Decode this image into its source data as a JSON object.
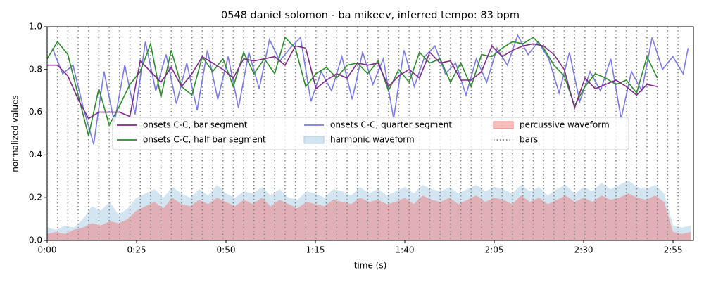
{
  "chart_data": {
    "type": "line",
    "title": "0548 daniel solomon - ba mikeev, inferred tempo: 83 bpm",
    "x_label": "time (s)",
    "y_label": "normalized values",
    "xlim": [
      0,
      180.7
    ],
    "ylim": [
      0,
      1
    ],
    "xticks": [
      {
        "value": 0,
        "label": "0:00"
      },
      {
        "value": 25,
        "label": "0:25"
      },
      {
        "value": 50,
        "label": "0:50"
      },
      {
        "value": 75,
        "label": "1:15"
      },
      {
        "value": 100,
        "label": "1:40"
      },
      {
        "value": 125,
        "label": "2:05"
      },
      {
        "value": 150,
        "label": "2:30"
      },
      {
        "value": 175,
        "label": "2:55"
      }
    ],
    "yticks": [
      {
        "value": 0,
        "label": "0.0"
      },
      {
        "value": 0.2,
        "label": "0.2"
      },
      {
        "value": 0.4,
        "label": "0.4"
      },
      {
        "value": 0.6,
        "label": "0.6"
      },
      {
        "value": 0.8,
        "label": "0.8"
      },
      {
        "value": 1,
        "label": "1.0"
      }
    ],
    "areas": [
      {
        "name": "harmonic waveform",
        "color": "#a6cbe3",
        "x": [
          0,
          2.5,
          5,
          7.5,
          10,
          12.5,
          15,
          17.5,
          20,
          22.5,
          25,
          27.5,
          30,
          32.5,
          35,
          37.5,
          40,
          42.5,
          45,
          47.5,
          50,
          52.5,
          55,
          57.5,
          60,
          62.5,
          65,
          67.5,
          70,
          72.5,
          75,
          77.5,
          80,
          82.5,
          85,
          87.5,
          90,
          92.5,
          95,
          97.5,
          100,
          102.5,
          105,
          107.5,
          110,
          112.5,
          115,
          117.5,
          120,
          122.5,
          125,
          127.5,
          130,
          132.5,
          135,
          137.5,
          140,
          142.5,
          145,
          147.5,
          150,
          152.5,
          155,
          157.5,
          160,
          162.5,
          165,
          167.5,
          170,
          172.5,
          175,
          177.5,
          180
        ],
        "values": [
          0.06,
          0.05,
          0.07,
          0.06,
          0.1,
          0.16,
          0.14,
          0.18,
          0.12,
          0.15,
          0.2,
          0.22,
          0.24,
          0.2,
          0.25,
          0.22,
          0.2,
          0.24,
          0.21,
          0.26,
          0.22,
          0.2,
          0.23,
          0.22,
          0.25,
          0.21,
          0.24,
          0.2,
          0.19,
          0.23,
          0.22,
          0.2,
          0.24,
          0.23,
          0.21,
          0.25,
          0.22,
          0.24,
          0.21,
          0.23,
          0.25,
          0.22,
          0.26,
          0.24,
          0.23,
          0.25,
          0.22,
          0.24,
          0.26,
          0.23,
          0.25,
          0.24,
          0.22,
          0.26,
          0.23,
          0.25,
          0.21,
          0.24,
          0.26,
          0.22,
          0.25,
          0.23,
          0.27,
          0.24,
          0.26,
          0.28,
          0.25,
          0.24,
          0.26,
          0.22,
          0.07,
          0.06,
          0.07
        ]
      },
      {
        "name": "percussive waveform",
        "color": "#ee7b7b",
        "x": [
          0,
          2.5,
          5,
          7.5,
          10,
          12.5,
          15,
          17.5,
          20,
          22.5,
          25,
          27.5,
          30,
          32.5,
          35,
          37.5,
          40,
          42.5,
          45,
          47.5,
          50,
          52.5,
          55,
          57.5,
          60,
          62.5,
          65,
          67.5,
          70,
          72.5,
          75,
          77.5,
          80,
          82.5,
          85,
          87.5,
          90,
          92.5,
          95,
          97.5,
          100,
          102.5,
          105,
          107.5,
          110,
          112.5,
          115,
          117.5,
          120,
          122.5,
          125,
          127.5,
          130,
          132.5,
          135,
          137.5,
          140,
          142.5,
          145,
          147.5,
          150,
          152.5,
          155,
          157.5,
          160,
          162.5,
          165,
          167.5,
          170,
          172.5,
          175,
          177.5,
          180
        ],
        "values": [
          0.03,
          0.04,
          0.03,
          0.05,
          0.06,
          0.08,
          0.07,
          0.09,
          0.08,
          0.1,
          0.14,
          0.16,
          0.18,
          0.15,
          0.2,
          0.17,
          0.16,
          0.19,
          0.17,
          0.2,
          0.18,
          0.16,
          0.19,
          0.17,
          0.2,
          0.16,
          0.19,
          0.17,
          0.15,
          0.18,
          0.17,
          0.16,
          0.19,
          0.18,
          0.17,
          0.2,
          0.18,
          0.19,
          0.17,
          0.18,
          0.2,
          0.17,
          0.21,
          0.19,
          0.18,
          0.2,
          0.17,
          0.19,
          0.21,
          0.18,
          0.2,
          0.19,
          0.17,
          0.21,
          0.18,
          0.2,
          0.17,
          0.19,
          0.21,
          0.18,
          0.2,
          0.18,
          0.21,
          0.19,
          0.2,
          0.22,
          0.2,
          0.19,
          0.21,
          0.18,
          0.04,
          0.03,
          0.04
        ]
      }
    ],
    "bar_lines": {
      "name": "bars",
      "color": "#808080",
      "x": [
        0,
        2.89,
        5.78,
        8.67,
        11.57,
        14.46,
        17.35,
        20.24,
        23.13,
        26.02,
        28.92,
        31.81,
        34.7,
        37.59,
        40.48,
        43.37,
        46.27,
        49.16,
        52.05,
        54.94,
        57.83,
        60.72,
        63.62,
        66.51,
        69.4,
        72.29,
        75.18,
        78.07,
        80.96,
        83.86,
        86.75,
        89.64,
        92.53,
        95.42,
        98.31,
        101.21,
        104.1,
        106.99,
        109.88,
        112.77,
        115.66,
        118.55,
        121.45,
        124.34,
        127.23,
        130.12,
        133.01,
        135.9,
        138.8,
        141.69,
        144.58,
        147.47,
        150.36,
        153.25,
        156.14,
        159.04,
        161.93,
        164.82,
        167.71,
        170.6,
        173.49,
        176.39
      ]
    },
    "series": [
      {
        "name": "onsets C-C, bar segment",
        "color": "#7f2a8a",
        "x": [
          0,
          2.89,
          5.78,
          8.67,
          11.57,
          14.46,
          17.35,
          20.24,
          23.13,
          26.02,
          28.92,
          31.81,
          34.7,
          37.59,
          40.48,
          43.37,
          46.27,
          49.16,
          52.05,
          54.94,
          57.83,
          60.72,
          63.62,
          66.51,
          69.4,
          72.29,
          75.18,
          78.07,
          80.96,
          83.86,
          86.75,
          89.64,
          92.53,
          95.42,
          98.31,
          101.21,
          104.1,
          106.99,
          109.88,
          112.77,
          115.66,
          118.55,
          121.45,
          124.34,
          127.23,
          130.12,
          133.01,
          135.9,
          138.8,
          141.69,
          144.58,
          147.47,
          150.36,
          153.25,
          156.14,
          159.04,
          161.93,
          164.82,
          167.71,
          170.6
        ],
        "values": [
          0.82,
          0.82,
          0.77,
          0.66,
          0.57,
          0.6,
          0.6,
          0.6,
          0.58,
          0.84,
          0.79,
          0.74,
          0.81,
          0.72,
          0.78,
          0.86,
          0.83,
          0.8,
          0.76,
          0.85,
          0.84,
          0.85,
          0.86,
          0.82,
          0.91,
          0.9,
          0.71,
          0.75,
          0.78,
          0.76,
          0.83,
          0.82,
          0.83,
          0.72,
          0.77,
          0.8,
          0.76,
          0.88,
          0.83,
          0.84,
          0.75,
          0.75,
          0.79,
          0.91,
          0.86,
          0.89,
          0.91,
          0.92,
          0.91,
          0.87,
          0.8,
          0.62,
          0.76,
          0.71,
          0.73,
          0.75,
          0.72,
          0.68,
          0.73,
          0.72
        ]
      },
      {
        "name": "onsets C-C, half bar segment",
        "color": "#2a8f2a",
        "x": [
          0,
          2.89,
          5.78,
          8.67,
          11.57,
          14.46,
          17.35,
          20.24,
          23.13,
          26.02,
          28.92,
          31.81,
          34.7,
          37.59,
          40.48,
          43.37,
          46.27,
          49.16,
          52.05,
          54.94,
          57.83,
          60.72,
          63.62,
          66.51,
          69.4,
          72.29,
          75.18,
          78.07,
          80.96,
          83.86,
          86.75,
          89.64,
          92.53,
          95.42,
          98.31,
          101.21,
          104.1,
          106.99,
          109.88,
          112.77,
          115.66,
          118.55,
          121.45,
          124.34,
          127.23,
          130.12,
          133.01,
          135.9,
          138.8,
          141.69,
          144.58,
          147.47,
          150.36,
          153.25,
          156.14,
          159.04,
          161.93,
          164.82,
          167.71,
          170.6
        ],
        "values": [
          0.85,
          0.93,
          0.87,
          0.68,
          0.49,
          0.71,
          0.54,
          0.63,
          0.73,
          0.79,
          0.92,
          0.67,
          0.89,
          0.72,
          0.68,
          0.86,
          0.79,
          0.85,
          0.72,
          0.88,
          0.78,
          0.85,
          0.78,
          0.95,
          0.9,
          0.72,
          0.78,
          0.81,
          0.76,
          0.82,
          0.83,
          0.78,
          0.84,
          0.7,
          0.8,
          0.74,
          0.88,
          0.83,
          0.85,
          0.74,
          0.83,
          0.72,
          0.87,
          0.86,
          0.9,
          0.93,
          0.92,
          0.95,
          0.9,
          0.82,
          0.77,
          0.63,
          0.72,
          0.78,
          0.76,
          0.73,
          0.75,
          0.69,
          0.86,
          0.76
        ]
      },
      {
        "name": "onsets C-C, quarter segment",
        "color": "#7a7ae8",
        "x": [
          1.45,
          4.34,
          7.23,
          10.12,
          13.01,
          15.9,
          18.8,
          21.69,
          24.58,
          27.47,
          30.36,
          33.25,
          36.14,
          39.04,
          41.93,
          44.82,
          47.71,
          50.6,
          53.49,
          56.39,
          59.28,
          62.17,
          65.06,
          67.95,
          70.84,
          73.73,
          76.63,
          79.52,
          82.41,
          85.3,
          88.19,
          91.08,
          93.98,
          96.87,
          99.76,
          102.65,
          105.54,
          108.43,
          111.32,
          114.22,
          117.11,
          120,
          122.89,
          125.78,
          128.67,
          131.56,
          134.46,
          137.35,
          140.24,
          143.13,
          146.02,
          148.91,
          151.8,
          154.7,
          157.59,
          160.48,
          163.37,
          166.26,
          169.15,
          172.05,
          174.94,
          177.83,
          179.2
        ],
        "values": [
          0.9,
          0.78,
          0.82,
          0.62,
          0.45,
          0.79,
          0.55,
          0.82,
          0.59,
          0.93,
          0.7,
          0.87,
          0.64,
          0.83,
          0.61,
          0.89,
          0.66,
          0.86,
          0.62,
          0.88,
          0.71,
          0.94,
          0.84,
          0.9,
          0.95,
          0.65,
          0.79,
          0.7,
          0.86,
          0.66,
          0.88,
          0.73,
          0.85,
          0.57,
          0.89,
          0.72,
          0.86,
          0.91,
          0.78,
          0.83,
          0.68,
          0.85,
          0.74,
          0.9,
          0.82,
          0.96,
          0.87,
          0.93,
          0.85,
          0.69,
          0.88,
          0.65,
          0.79,
          0.7,
          0.85,
          0.57,
          0.79,
          0.7,
          0.95,
          0.8,
          0.86,
          0.78,
          0.9
        ]
      }
    ],
    "legend": "center",
    "grid": false
  }
}
